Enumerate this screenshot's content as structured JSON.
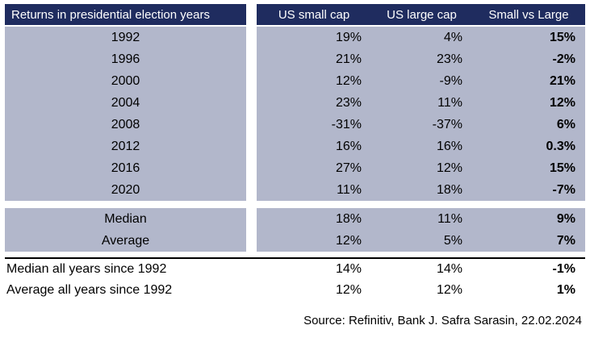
{
  "chart_data": {
    "type": "table",
    "title": "Returns in presidential election years",
    "columns": [
      "US small cap",
      "US large cap",
      "Small vs Large"
    ],
    "rows": [
      {
        "label": "1992",
        "values": [
          19,
          4,
          15
        ]
      },
      {
        "label": "1996",
        "values": [
          21,
          23,
          -2
        ]
      },
      {
        "label": "2000",
        "values": [
          12,
          -9,
          21
        ]
      },
      {
        "label": "2004",
        "values": [
          23,
          11,
          12
        ]
      },
      {
        "label": "2008",
        "values": [
          -31,
          -37,
          6
        ]
      },
      {
        "label": "2012",
        "values": [
          16,
          16,
          0.3
        ]
      },
      {
        "label": "2016",
        "values": [
          27,
          12,
          15
        ]
      },
      {
        "label": "2020",
        "values": [
          11,
          18,
          -7
        ]
      }
    ],
    "summary": [
      {
        "label": "Median",
        "values": [
          18,
          11,
          9
        ]
      },
      {
        "label": "Average",
        "values": [
          12,
          5,
          7
        ]
      },
      {
        "label": "Median all years since 1992",
        "values": [
          14,
          14,
          -1
        ]
      },
      {
        "label": "Average all years since 1992",
        "values": [
          12,
          12,
          1
        ]
      }
    ],
    "source": "Source: Refinitiv, Bank J. Safra Sarasin, 22.02.2024"
  },
  "display": {
    "header": {
      "label": "Returns in presidential election years",
      "columns": [
        "US small cap",
        "US large cap",
        "Small vs Large"
      ]
    },
    "rows": [
      {
        "label": "1992",
        "small": "19%",
        "large": "4%",
        "diff": "15%"
      },
      {
        "label": "1996",
        "small": "21%",
        "large": "23%",
        "diff": "-2%"
      },
      {
        "label": "2000",
        "small": "12%",
        "large": "-9%",
        "diff": "21%"
      },
      {
        "label": "2004",
        "small": "23%",
        "large": "11%",
        "diff": "12%"
      },
      {
        "label": "2008",
        "small": "-31%",
        "large": "-37%",
        "diff": "6%"
      },
      {
        "label": "2012",
        "small": "16%",
        "large": "16%",
        "diff": "0.3%"
      },
      {
        "label": "2016",
        "small": "27%",
        "large": "12%",
        "diff": "15%"
      },
      {
        "label": "2020",
        "small": "11%",
        "large": "18%",
        "diff": "-7%"
      }
    ],
    "summary": [
      {
        "label": "Median",
        "small": "18%",
        "large": "11%",
        "diff": "9%"
      },
      {
        "label": "Average",
        "small": "12%",
        "large": "5%",
        "diff": "7%"
      }
    ],
    "all_years": [
      {
        "label": "Median all years since 1992",
        "small": "14%",
        "large": "14%",
        "diff": "-1%"
      },
      {
        "label": "Average all years since 1992",
        "small": "12%",
        "large": "12%",
        "diff": "1%"
      }
    ],
    "source": "Source: Refinitiv, Bank J. Safra Sarasin, 22.02.2024"
  },
  "colors": {
    "header_bg": "#1F2C5F",
    "header_text": "#FFFFFF",
    "row_bg": "#B2B7CB",
    "text": "#000000"
  }
}
